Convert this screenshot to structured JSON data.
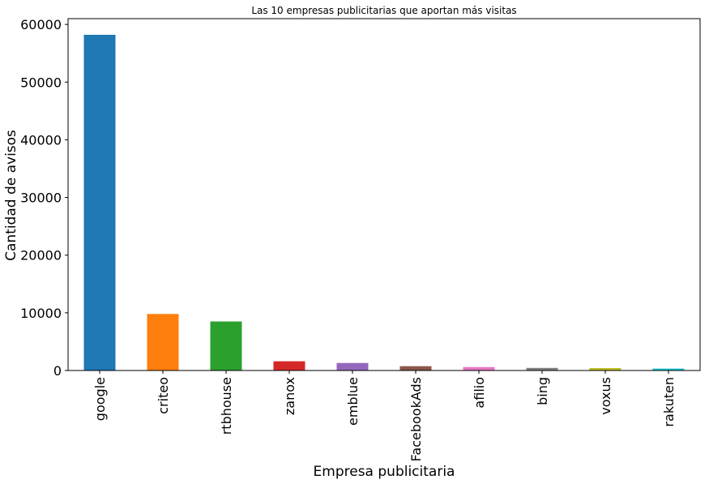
{
  "chart_data": {
    "type": "bar",
    "title": "Las 10 empresas publicitarias que aportan más visitas",
    "xlabel": "Empresa publicitaria",
    "ylabel": "Cantidad de avisos",
    "categories": [
      "google",
      "criteo",
      "rtbhouse",
      "zanox",
      "emblue",
      "FacebookAds",
      "afilio",
      "bing",
      "voxus",
      "rakuten"
    ],
    "values": [
      58200,
      9800,
      8500,
      1600,
      1300,
      750,
      600,
      450,
      420,
      330
    ],
    "colors": [
      "#1f77b4",
      "#ff7f0e",
      "#2ca02c",
      "#d62728",
      "#9467bd",
      "#8c564b",
      "#e377c2",
      "#7f7f7f",
      "#bcbd22",
      "#17becf"
    ],
    "ylim": [
      0,
      61000
    ],
    "yticks": [
      "0",
      "10000",
      "20000",
      "30000",
      "40000",
      "50000",
      "60000"
    ],
    "grid": false,
    "legend": "none"
  }
}
